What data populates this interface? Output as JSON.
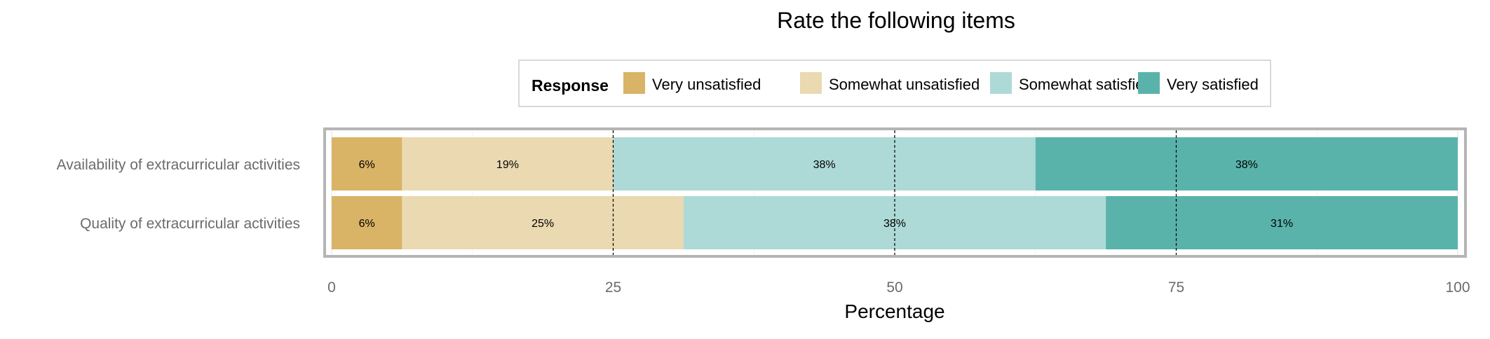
{
  "chart_data": {
    "type": "bar",
    "orientation": "horizontal",
    "stacked": true,
    "title": "Rate the following items",
    "xlabel": "Percentage",
    "ylabel": "",
    "xlim": [
      0,
      100
    ],
    "x_ticks": [
      0,
      25,
      50,
      75,
      100
    ],
    "grid": true,
    "legend": {
      "title": "Response",
      "position": "top"
    },
    "categories": [
      "Availability of extracurricular activities",
      "Quality of extracurricular activities"
    ],
    "series": [
      {
        "name": "Very unsatisfied",
        "color": "#D9B366",
        "values": [
          6.25,
          6.25
        ],
        "labels": [
          "6%",
          "6%"
        ]
      },
      {
        "name": "Somewhat unsatisfied",
        "color": "#EAD9B1",
        "values": [
          18.75,
          25
        ],
        "labels": [
          "19%",
          "25%"
        ]
      },
      {
        "name": "Somewhat satisfied",
        "color": "#ADDAD6",
        "values": [
          37.5,
          37.5
        ],
        "labels": [
          "38%",
          "38%"
        ]
      },
      {
        "name": "Very satisfied",
        "color": "#5AB3AB",
        "values": [
          37.5,
          31.25
        ],
        "labels": [
          "38%",
          "31%"
        ]
      }
    ]
  }
}
